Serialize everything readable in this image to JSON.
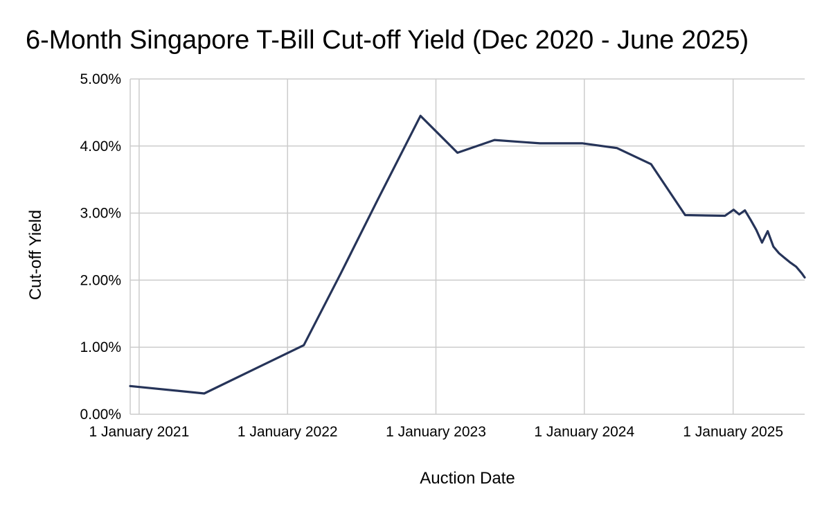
{
  "chart_data": {
    "type": "line",
    "title": "6-Month Singapore T-Bill Cut-off Yield (Dec 2020 - June 2025)",
    "xlabel": "Auction Date",
    "ylabel": "Cut-off Yield",
    "ylim": [
      0,
      0.05
    ],
    "y_ticks": [
      {
        "value": 0.0,
        "label": "0.00%"
      },
      {
        "value": 0.01,
        "label": "1.00%"
      },
      {
        "value": 0.02,
        "label": "2.00%"
      },
      {
        "value": 0.03,
        "label": "3.00%"
      },
      {
        "value": 0.04,
        "label": "4.00%"
      },
      {
        "value": 0.05,
        "label": "5.00%"
      }
    ],
    "xlim": [
      "2020-12-10",
      "2025-06-26"
    ],
    "x_ticks": [
      {
        "value": "2021-01-01",
        "label": "1 January 2021"
      },
      {
        "value": "2022-01-01",
        "label": "1 January 2022"
      },
      {
        "value": "2023-01-01",
        "label": "1 January 2023"
      },
      {
        "value": "2024-01-01",
        "label": "1 January 2024"
      },
      {
        "value": "2025-01-01",
        "label": "1 January 2025"
      }
    ],
    "grid": true,
    "legend": "none",
    "series": [
      {
        "color": "#263459",
        "points": [
          {
            "x": "2020-12-10",
            "y": 0.0042
          },
          {
            "x": "2021-06-10",
            "y": 0.0031
          },
          {
            "x": "2022-02-10",
            "y": 0.0103
          },
          {
            "x": "2022-05-12",
            "y": 0.021
          },
          {
            "x": "2022-08-11",
            "y": 0.032
          },
          {
            "x": "2022-11-24",
            "y": 0.0445
          },
          {
            "x": "2023-02-23",
            "y": 0.039
          },
          {
            "x": "2023-05-25",
            "y": 0.0409
          },
          {
            "x": "2023-09-14",
            "y": 0.0404
          },
          {
            "x": "2023-12-28",
            "y": 0.0404
          },
          {
            "x": "2024-03-21",
            "y": 0.0397
          },
          {
            "x": "2024-06-13",
            "y": 0.0373
          },
          {
            "x": "2024-09-05",
            "y": 0.0297
          },
          {
            "x": "2024-12-12",
            "y": 0.0296
          },
          {
            "x": "2025-01-02",
            "y": 0.0305
          },
          {
            "x": "2025-01-16",
            "y": 0.0298
          },
          {
            "x": "2025-01-30",
            "y": 0.0304
          },
          {
            "x": "2025-02-13",
            "y": 0.029
          },
          {
            "x": "2025-02-27",
            "y": 0.0275
          },
          {
            "x": "2025-03-13",
            "y": 0.0256
          },
          {
            "x": "2025-03-27",
            "y": 0.0273
          },
          {
            "x": "2025-04-10",
            "y": 0.025
          },
          {
            "x": "2025-04-24",
            "y": 0.024
          },
          {
            "x": "2025-05-08",
            "y": 0.0233
          },
          {
            "x": "2025-05-22",
            "y": 0.0226
          },
          {
            "x": "2025-06-05",
            "y": 0.022
          },
          {
            "x": "2025-06-19",
            "y": 0.021
          },
          {
            "x": "2025-06-26",
            "y": 0.0204
          }
        ]
      }
    ]
  }
}
